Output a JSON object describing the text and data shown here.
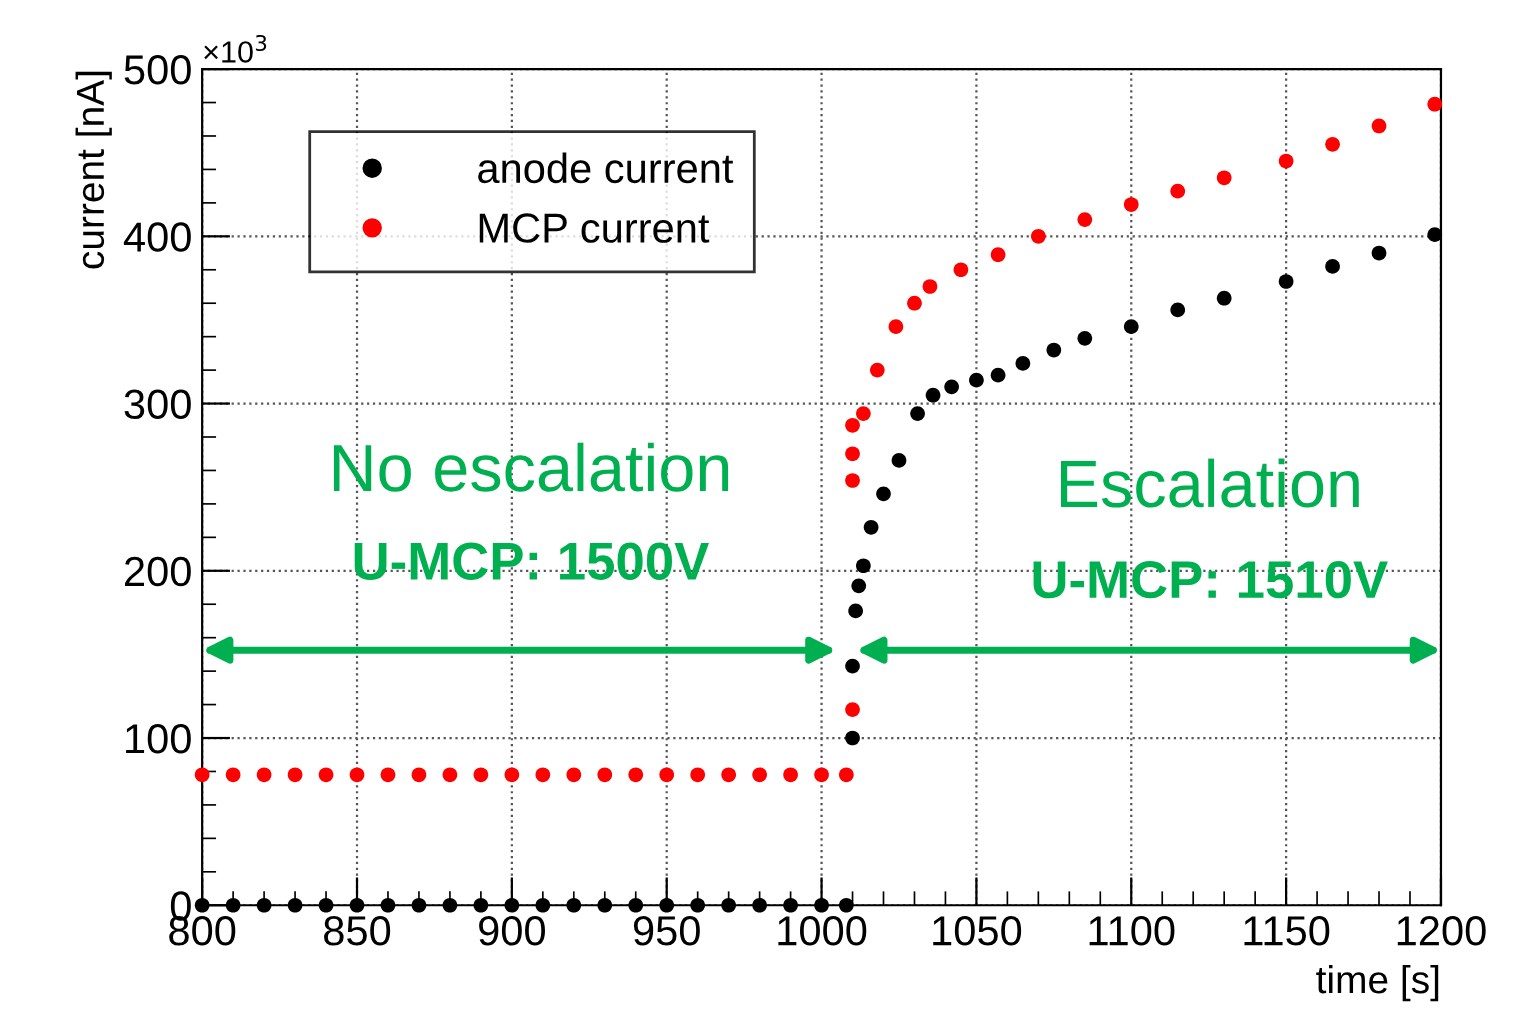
{
  "chart_data": {
    "type": "scatter",
    "xlabel": "time [s]",
    "ylabel": "current [nA]",
    "xlim": [
      800,
      1200
    ],
    "xticks": [
      800,
      850,
      900,
      950,
      1000,
      1050,
      1100,
      1150,
      1200
    ],
    "ylim": [
      0,
      500
    ],
    "yticks": [
      0,
      100,
      200,
      300,
      400,
      500
    ],
    "grid": true,
    "legend": "top left",
    "marker": "circle",
    "annotations": [
      "×10$^{3}$",
      "No escalation",
      "U-MCP: 1500V",
      "Escalation",
      "U-MCP: 1510V"
    ],
    "series": [
      {
        "name": "anode current",
        "color": "#000000",
        "x": [
          800,
          810,
          820,
          830,
          840,
          850,
          860,
          870,
          880,
          890,
          900,
          910,
          920,
          930,
          940,
          950,
          960,
          970,
          980,
          990,
          1000,
          1008,
          1010,
          1010,
          1011,
          1012,
          1013.5,
          1016,
          1020,
          1025,
          1031,
          1036,
          1042,
          1050,
          1057,
          1065,
          1075,
          1085,
          1100,
          1115,
          1130,
          1150,
          1165,
          1180,
          1198
        ],
        "values": [
          0,
          0,
          0,
          0,
          0,
          0,
          0,
          0,
          0,
          0,
          0,
          0,
          0,
          0,
          0,
          0,
          0,
          0,
          0,
          0,
          0,
          0,
          100,
          143,
          176,
          191,
          203,
          226,
          246,
          266,
          294,
          305,
          310,
          314,
          317,
          324,
          332,
          339,
          346,
          356,
          363,
          373,
          382,
          390,
          401
        ]
      },
      {
        "name": "MCP current",
        "color": "#ff0000",
        "x": [
          800,
          810,
          820,
          830,
          840,
          850,
          860,
          870,
          880,
          890,
          900,
          910,
          920,
          930,
          940,
          950,
          960,
          970,
          980,
          990,
          1000,
          1008,
          1010,
          1010,
          1010,
          1010,
          1013.5,
          1018,
          1024,
          1030,
          1035,
          1045,
          1057,
          1070,
          1085,
          1100,
          1115,
          1130,
          1150,
          1165,
          1180,
          1198
        ],
        "values": [
          78,
          78,
          78,
          78,
          78,
          78,
          78,
          78,
          78,
          78,
          78,
          78,
          78,
          78,
          78,
          78,
          78,
          78,
          78,
          78,
          78,
          78,
          117,
          254,
          270,
          287,
          294,
          320,
          346,
          360,
          370,
          380,
          389,
          400,
          410,
          419,
          427,
          435,
          445,
          455,
          466,
          479
        ]
      }
    ]
  }
}
